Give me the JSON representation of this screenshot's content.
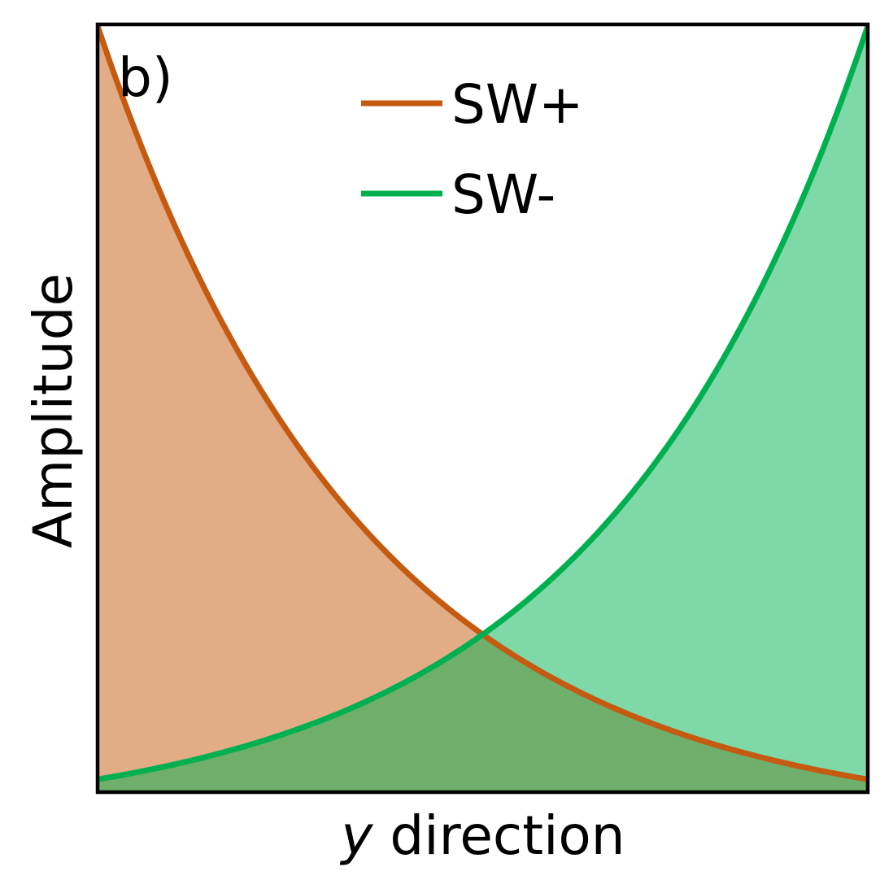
{
  "chart_data": {
    "type": "area",
    "panel_label": "b)",
    "xlabel_var": "y",
    "xlabel_rest": " direction",
    "ylabel": "Amplitude",
    "xlim": [
      0,
      1
    ],
    "ylim": [
      0,
      1
    ],
    "grid": false,
    "legend_position": "top-center",
    "x_ticks_shown": false,
    "y_ticks_shown": false,
    "decay_rate": 2.87,
    "series": [
      {
        "name": "SW+",
        "color": "#c55a11",
        "fill": "#e2ac87",
        "direction": "decaying",
        "x": [
          0,
          0.1,
          0.2,
          0.3,
          0.4,
          0.5,
          0.6,
          0.7,
          0.8,
          0.9,
          1.0
        ],
        "values": [
          1.0,
          0.75,
          0.56,
          0.42,
          0.32,
          0.24,
          0.18,
          0.13,
          0.1,
          0.075,
          0.057
        ]
      },
      {
        "name": "SW-",
        "color": "#00b050",
        "fill": "#7fd8a7",
        "direction": "growing",
        "x": [
          0,
          0.1,
          0.2,
          0.3,
          0.4,
          0.5,
          0.6,
          0.7,
          0.8,
          0.9,
          1.0
        ],
        "values": [
          0.057,
          0.075,
          0.1,
          0.13,
          0.18,
          0.24,
          0.32,
          0.42,
          0.56,
          0.75,
          1.0
        ]
      }
    ],
    "overlap_fill": "#70ae6b"
  }
}
